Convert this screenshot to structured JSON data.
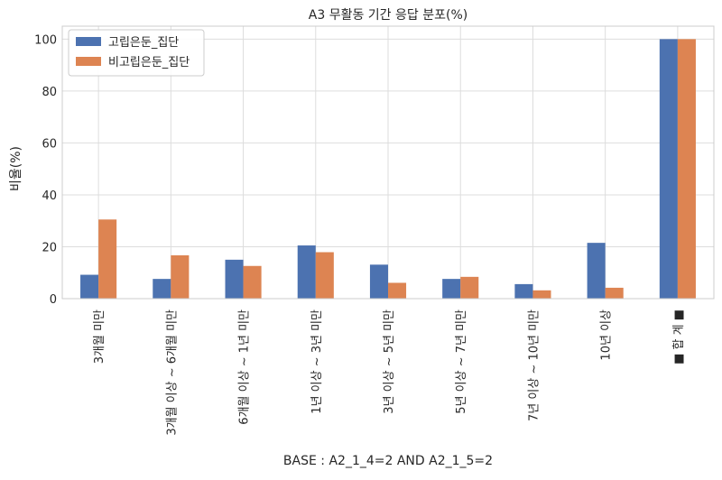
{
  "chart_data": {
    "type": "bar",
    "title": "A3 무활동 기간 응답 분포(%)",
    "xlabel": "BASE : A2_1_4=2 AND A2_1_5=2",
    "ylabel": "비율(%)",
    "ylim": [
      0,
      105
    ],
    "yticks": [
      0,
      20,
      40,
      60,
      80,
      100
    ],
    "grid": true,
    "legend_position": "top-left",
    "categories": [
      "3개월 미만",
      "3개월 이상 ~ 6개월 미만",
      "6개월 이상 ~ 1년 미만",
      "1년 이상 ~ 3년 미만",
      "3년 이상 ~ 5년 미만",
      "5년 이상 ~ 7년 미만",
      "7년 이상 ~ 10년 미만",
      "10년 이상",
      "■ 합 계 ■"
    ],
    "series": [
      {
        "name": "고립은둔_집단",
        "color": "#4c72b0",
        "values": [
          9.2,
          7.6,
          15.0,
          20.5,
          13.1,
          7.6,
          5.6,
          21.5,
          100
        ]
      },
      {
        "name": "비고립은둔_집단",
        "color": "#dd8452",
        "values": [
          30.5,
          16.7,
          12.6,
          17.9,
          6.1,
          8.4,
          3.2,
          4.2,
          100
        ]
      }
    ]
  }
}
